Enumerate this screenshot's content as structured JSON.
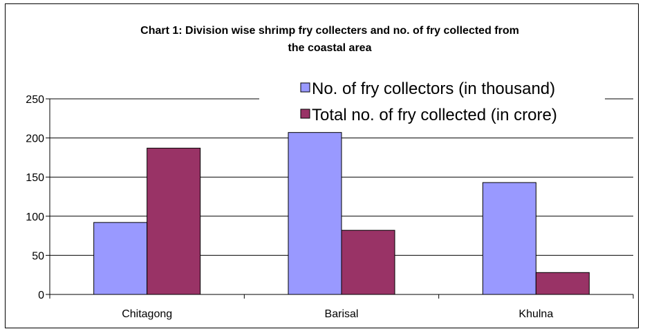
{
  "chart_data": {
    "type": "bar",
    "title": "Chart 1: Division wise shrimp fry collecters and no. of fry collected from the coastal area",
    "title_lines": [
      "Chart 1: Division wise shrimp fry collecters and no. of fry collected from",
      "the coastal area"
    ],
    "categories": [
      "Chitagong",
      "Barisal",
      "Khulna"
    ],
    "series": [
      {
        "name": "No. of fry collectors (in thousand)",
        "color": "#9999FF",
        "values": [
          92,
          207,
          143
        ]
      },
      {
        "name": "Total no. of fry collected (in crore)",
        "color": "#993366",
        "values": [
          187,
          82,
          28
        ]
      }
    ],
    "yticks": [
      0,
      50,
      100,
      150,
      200,
      250
    ],
    "ylim": [
      0,
      250
    ],
    "grid": true,
    "legend_position": "top-right",
    "xlabel": "",
    "ylabel": ""
  }
}
